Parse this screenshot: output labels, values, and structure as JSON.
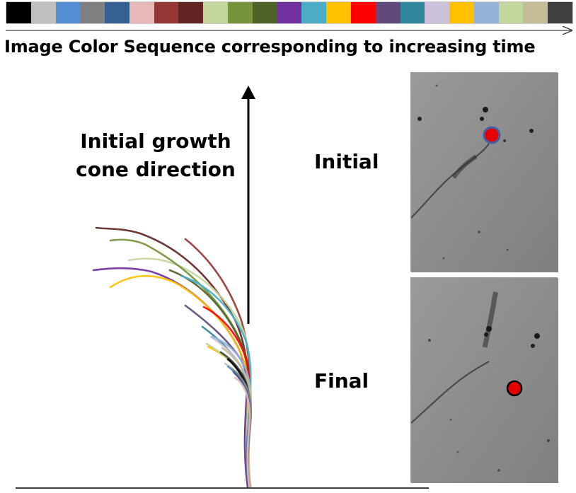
{
  "legend": {
    "caption": "Image Color Sequence corresponding to  increasing time",
    "colors": [
      "#000000",
      "#bfbfbf",
      "#558ed5",
      "#7f7f7f",
      "#376092",
      "#e6b9b8",
      "#953735",
      "#632523",
      "#c3d69b",
      "#77933c",
      "#4f6228",
      "#7030a0",
      "#4bacc6",
      "#ffc000",
      "#ff0000",
      "#604a7b",
      "#31859c",
      "#ccc1da",
      "#ffc000",
      "#95b3d7",
      "#c3d69b",
      "#c4bd97",
      "#404040"
    ]
  },
  "direction_label": "Initial growth cone direction",
  "initial_label": "Initial",
  "final_label": "Final",
  "marker_color": "#e60000",
  "marker_outline_initial": "#3c63a8"
}
